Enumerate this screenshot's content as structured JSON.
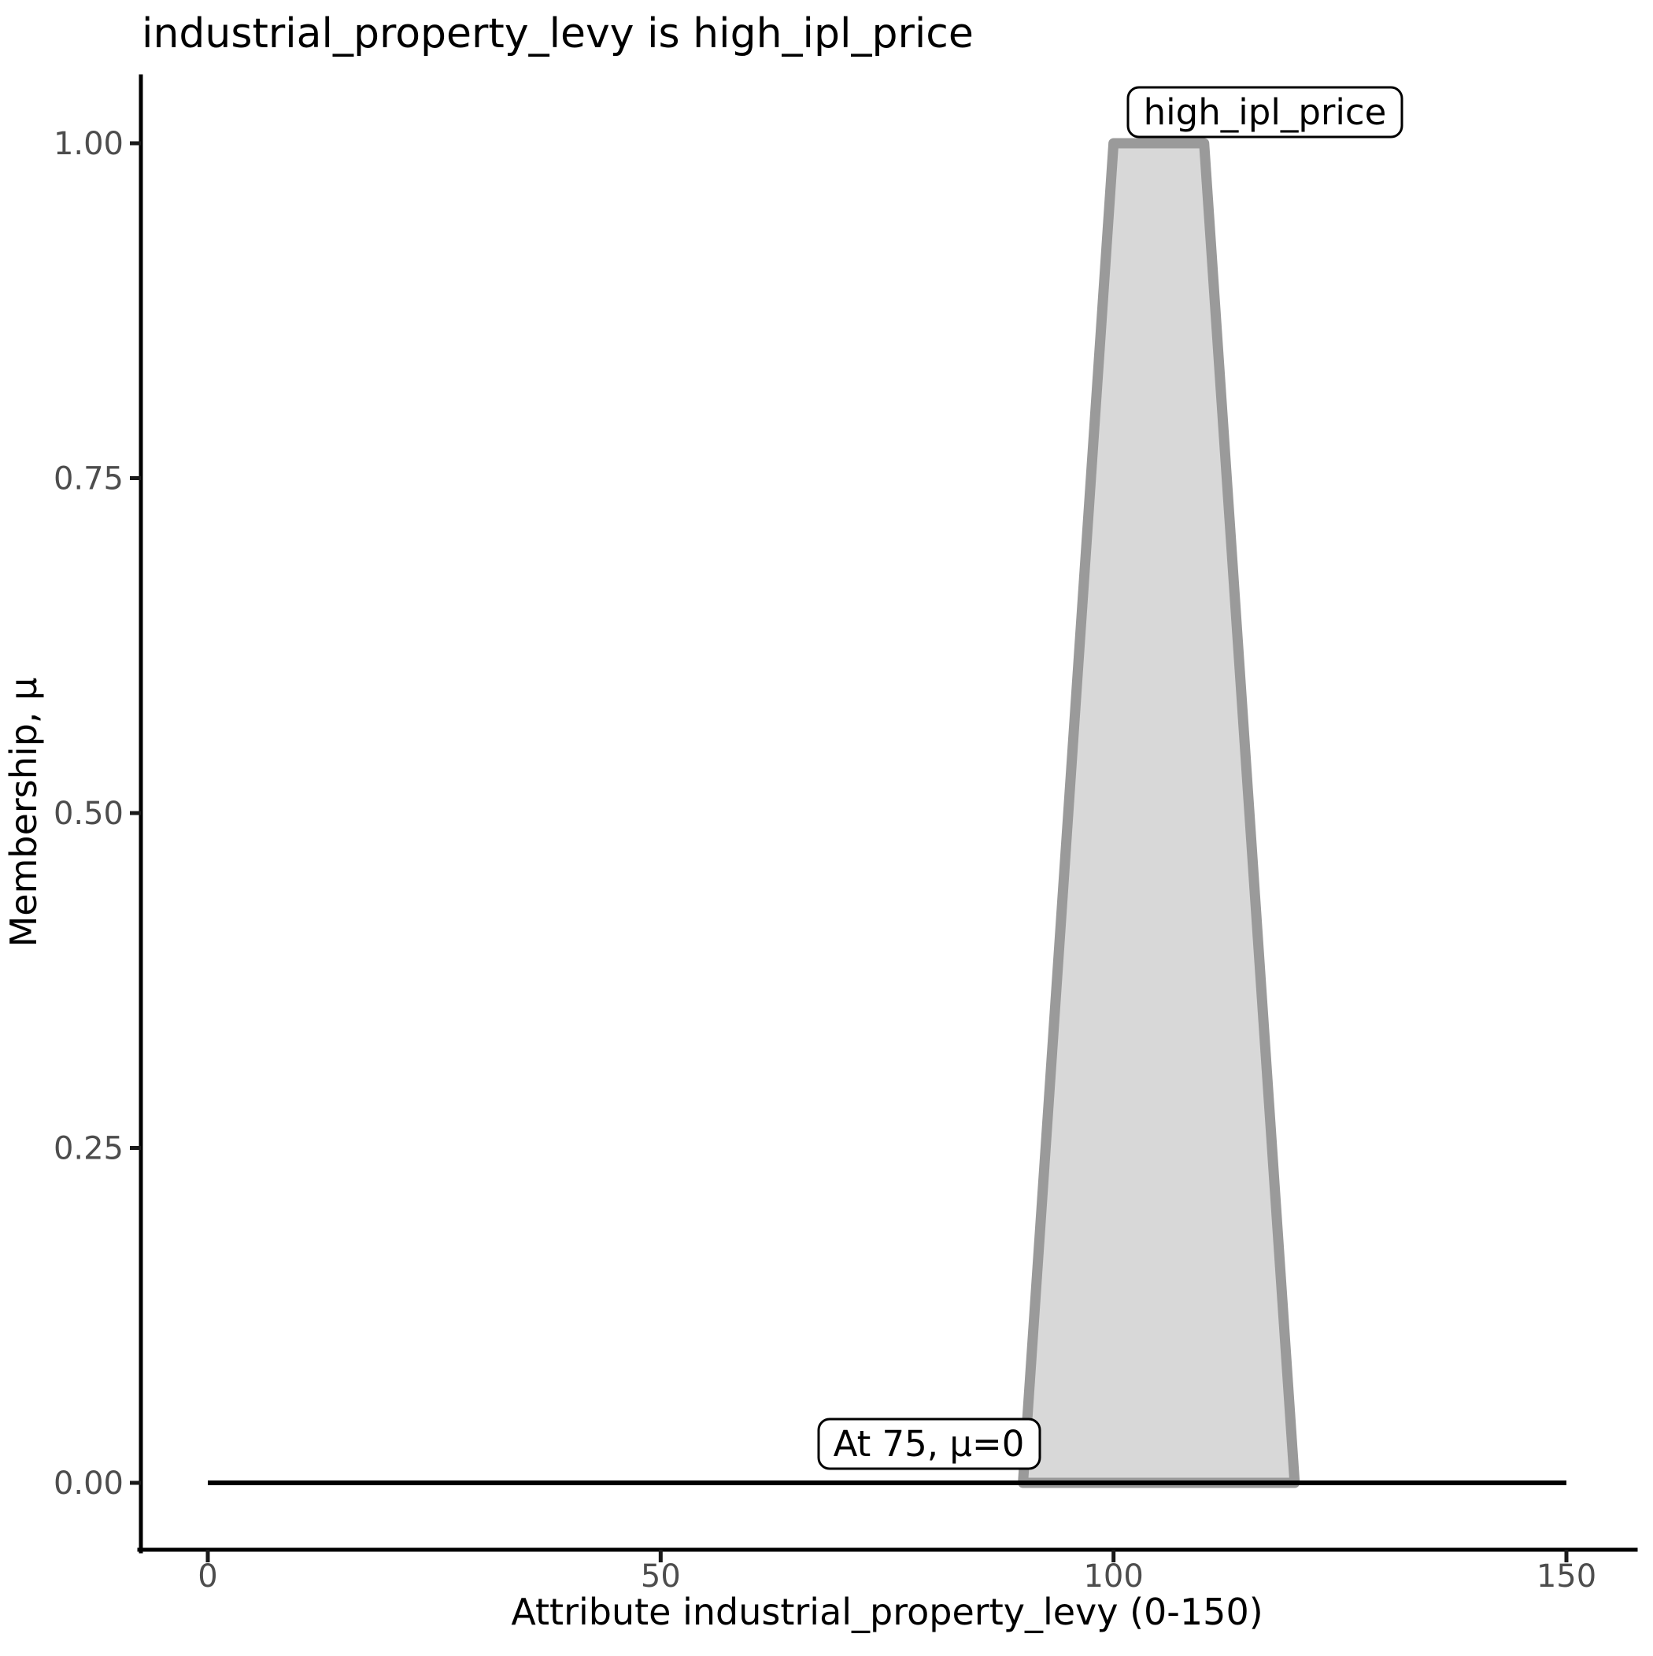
{
  "chart_data": {
    "type": "area",
    "title": "industrial_property_levy is high_ipl_price",
    "xlabel": "Attribute industrial_property_levy (0-150)",
    "ylabel": "Membership, μ",
    "xlim": [
      0,
      150
    ],
    "ylim": [
      0,
      1
    ],
    "grid": false,
    "legend_position": "none",
    "x_ticks": {
      "values": [
        0,
        50,
        100,
        150
      ],
      "labels": [
        "0",
        "50",
        "100",
        "150"
      ]
    },
    "y_ticks": {
      "values": [
        0,
        0.25,
        0.5,
        0.75,
        1.0
      ],
      "labels": [
        "0.00",
        "0.25",
        "0.50",
        "0.75",
        "1.00"
      ]
    },
    "series": [
      {
        "name": "high_ipl_price",
        "shape": "trapezoid",
        "points": [
          [
            90,
            0
          ],
          [
            100,
            1
          ],
          [
            110,
            1
          ],
          [
            120,
            0
          ]
        ],
        "fill": "#d8d8d8",
        "stroke": "#9a9a9a"
      }
    ],
    "baseline": {
      "mu": 0,
      "x_from": 0,
      "x_to": 150,
      "color": "#000000"
    },
    "annotations": [
      {
        "text": "high_ipl_price"
      },
      {
        "text": "At 75, μ=0"
      }
    ]
  },
  "colors": {
    "background": "#ffffff",
    "axis_line": "#000000",
    "tick_label": "#4d4d4d",
    "title_text": "#000000",
    "label_box_bg": "#ffffff",
    "label_box_border": "#000000"
  }
}
